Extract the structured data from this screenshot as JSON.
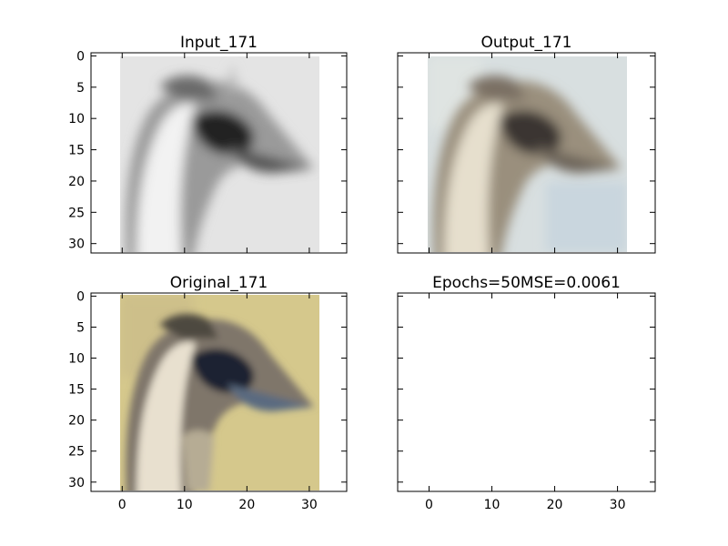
{
  "chart_data": [
    {
      "type": "image",
      "title": "Input_171",
      "xlim": [
        -5,
        36
      ],
      "ylim": [
        31.5,
        -0.5
      ],
      "xticks": [
        0,
        10,
        20,
        30
      ],
      "yticks": [
        0,
        5,
        10,
        15,
        20,
        25,
        30
      ],
      "show_xtick_labels": false,
      "show_ytick_labels": true,
      "image": {
        "width": 32,
        "height": 32,
        "colormap": "grayscale",
        "depicts": "emu-head",
        "background": "#e6e6e6"
      }
    },
    {
      "type": "image",
      "title": "Output_171",
      "xlim": [
        -5,
        36
      ],
      "ylim": [
        31.5,
        -0.5
      ],
      "xticks": [
        0,
        10,
        20,
        30
      ],
      "yticks": [
        0,
        5,
        10,
        15,
        20,
        25,
        30
      ],
      "show_xtick_labels": false,
      "show_ytick_labels": false,
      "image": {
        "width": 32,
        "height": 32,
        "colormap": "color",
        "depicts": "emu-head",
        "background": "#d5dde0"
      }
    },
    {
      "type": "image",
      "title": "Original_171",
      "xlim": [
        -5,
        36
      ],
      "ylim": [
        31.5,
        -0.5
      ],
      "xticks": [
        0,
        10,
        20,
        30
      ],
      "yticks": [
        0,
        5,
        10,
        15,
        20,
        25,
        30
      ],
      "show_xtick_labels": true,
      "show_ytick_labels": true,
      "image": {
        "width": 32,
        "height": 32,
        "colormap": "color",
        "depicts": "emu-head",
        "background": "#d6c98e"
      }
    },
    {
      "type": "empty",
      "title": "Epochs=50MSE=0.0061",
      "xlim": [
        -5,
        36
      ],
      "ylim": [
        31.5,
        -0.5
      ],
      "xticks": [
        0,
        10,
        20,
        30
      ],
      "yticks": [
        0,
        5,
        10,
        15,
        20,
        25,
        30
      ],
      "show_xtick_labels": true,
      "show_ytick_labels": false
    }
  ]
}
